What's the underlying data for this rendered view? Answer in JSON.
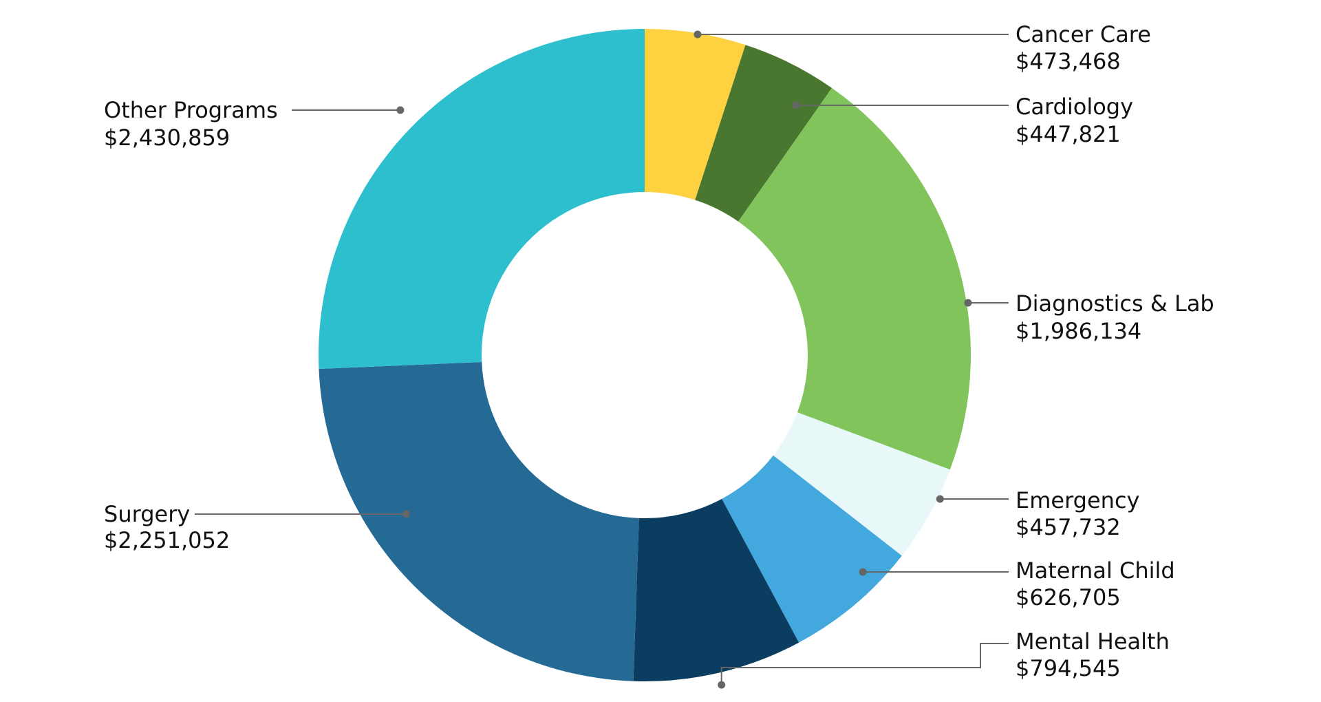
{
  "chart_data": {
    "type": "pie",
    "title": "",
    "donut": true,
    "slices": [
      {
        "label": "Cancer Care",
        "value_label": "$473,468",
        "value": 473468,
        "color": "#FDD13F"
      },
      {
        "label": "Cardiology",
        "value_label": "$447,821",
        "value": 447821,
        "color": "#4A7730"
      },
      {
        "label": "Diagnostics & Lab",
        "value_label": "$1,986,134",
        "value": 1986134,
        "color": "#82C45C"
      },
      {
        "label": "Emergency",
        "value_label": "$457,732",
        "value": 457732,
        "color": "#E8F8F8"
      },
      {
        "label": "Maternal Child",
        "value_label": "$626,705",
        "value": 626705,
        "color": "#42A8DD"
      },
      {
        "label": "Mental Health",
        "value_label": "$794,545",
        "value": 794545,
        "color": "#0B3D60"
      },
      {
        "label": "Surgery",
        "value_label": "$2,251,052",
        "value": 2251052,
        "color": "#246A95"
      },
      {
        "label": "Other Programs",
        "value_label": "$2,430,859",
        "value": 2430859,
        "color": "#2EBFCF"
      }
    ]
  }
}
